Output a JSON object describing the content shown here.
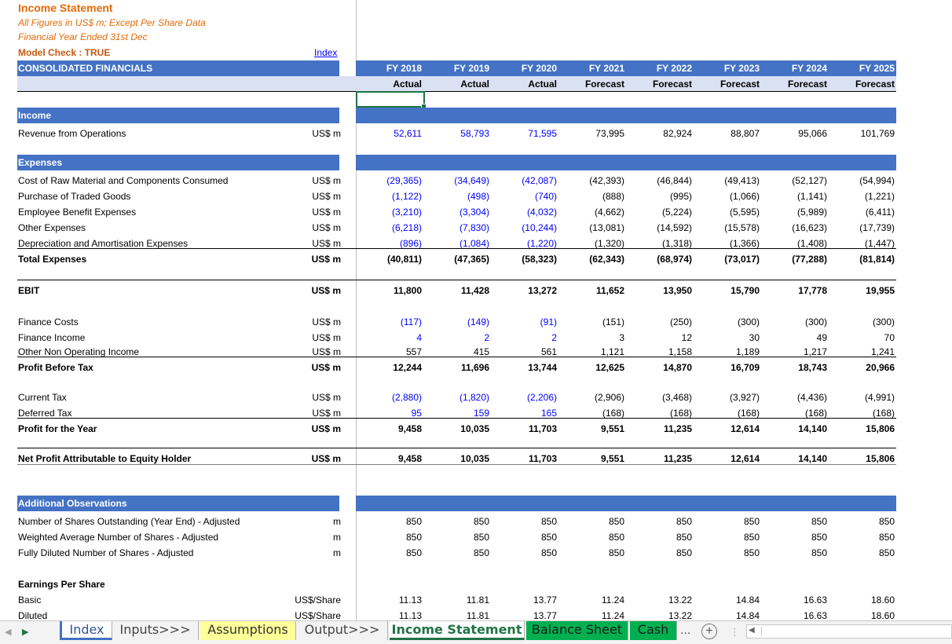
{
  "title": "Income Statement",
  "subtitle1": "All Figures in US$ m; Except Per Share Data",
  "subtitle2": "Financial Year Ended 31st Dec",
  "model_check": "Model Check : TRUE",
  "index_link": "Index",
  "header_band": "CONSOLIDATED FINANCIALS",
  "years": [
    "FY 2018",
    "FY 2019",
    "FY 2020",
    "FY 2021",
    "FY 2022",
    "FY 2023",
    "FY 2024",
    "FY 2025"
  ],
  "year_types": [
    "Actual",
    "Actual",
    "Actual",
    "Forecast",
    "Forecast",
    "Forecast",
    "Forecast",
    "Forecast"
  ],
  "sections": {
    "income": "Income",
    "expenses": "Expenses",
    "additional": "Additional Observations"
  },
  "rows": {
    "revenue": {
      "label": "Revenue from Operations",
      "unit": "US$ m",
      "values": [
        "52,611",
        "58,793",
        "71,595",
        "73,995",
        "82,924",
        "88,807",
        "95,066",
        "101,769"
      ]
    },
    "raw_material": {
      "label": "Cost of Raw Material and Components Consumed",
      "unit": "US$ m",
      "values": [
        "(29,365)",
        "(34,649)",
        "(42,087)",
        "(42,393)",
        "(46,844)",
        "(49,413)",
        "(52,127)",
        "(54,994)"
      ]
    },
    "traded_goods": {
      "label": "Purchase of Traded Goods",
      "unit": "US$ m",
      "values": [
        "(1,122)",
        "(498)",
        "(740)",
        "(888)",
        "(995)",
        "(1,066)",
        "(1,141)",
        "(1,221)"
      ]
    },
    "employee": {
      "label": "Employee Benefit Expenses",
      "unit": "US$ m",
      "values": [
        "(3,210)",
        "(3,304)",
        "(4,032)",
        "(4,662)",
        "(5,224)",
        "(5,595)",
        "(5,989)",
        "(6,411)"
      ]
    },
    "other_exp": {
      "label": "Other Expenses",
      "unit": "US$ m",
      "values": [
        "(6,218)",
        "(7,830)",
        "(10,244)",
        "(13,081)",
        "(14,592)",
        "(15,578)",
        "(16,623)",
        "(17,739)"
      ]
    },
    "depreciation": {
      "label": "Depreciation and Amortisation Expenses",
      "unit": "US$ m",
      "values": [
        "(896)",
        "(1,084)",
        "(1,220)",
        "(1,320)",
        "(1,318)",
        "(1,366)",
        "(1,408)",
        "(1,447)"
      ]
    },
    "total_exp": {
      "label": "Total Expenses",
      "unit": "US$ m",
      "values": [
        "(40,811)",
        "(47,365)",
        "(58,323)",
        "(62,343)",
        "(68,974)",
        "(73,017)",
        "(77,288)",
        "(81,814)"
      ]
    },
    "ebit": {
      "label": "EBIT",
      "unit": "US$ m",
      "values": [
        "11,800",
        "11,428",
        "13,272",
        "11,652",
        "13,950",
        "15,790",
        "17,778",
        "19,955"
      ]
    },
    "finance_costs": {
      "label": "Finance Costs",
      "unit": "US$ m",
      "values": [
        "(117)",
        "(149)",
        "(91)",
        "(151)",
        "(250)",
        "(300)",
        "(300)",
        "(300)"
      ]
    },
    "finance_income": {
      "label": "Finance Income",
      "unit": "US$ m",
      "values": [
        "4",
        "2",
        "2",
        "3",
        "12",
        "30",
        "49",
        "70"
      ]
    },
    "other_non_op": {
      "label": "Other Non Operating Income",
      "unit": "US$ m",
      "values": [
        "557",
        "415",
        "561",
        "1,121",
        "1,158",
        "1,189",
        "1,217",
        "1,241"
      ]
    },
    "pbt": {
      "label": "Profit Before Tax",
      "unit": "US$ m",
      "values": [
        "12,244",
        "11,696",
        "13,744",
        "12,625",
        "14,870",
        "16,709",
        "18,743",
        "20,966"
      ]
    },
    "current_tax": {
      "label": "Current Tax",
      "unit": "US$ m",
      "values": [
        "(2,880)",
        "(1,820)",
        "(2,206)",
        "(2,906)",
        "(3,468)",
        "(3,927)",
        "(4,436)",
        "(4,991)"
      ]
    },
    "deferred_tax": {
      "label": "Deferred Tax",
      "unit": "US$ m",
      "values": [
        "95",
        "159",
        "165",
        "(168)",
        "(168)",
        "(168)",
        "(168)",
        "(168)"
      ]
    },
    "profit_year": {
      "label": "Profit for the Year",
      "unit": "US$ m",
      "values": [
        "9,458",
        "10,035",
        "11,703",
        "9,551",
        "11,235",
        "12,614",
        "14,140",
        "15,806"
      ]
    },
    "net_profit": {
      "label": "Net Profit Attributable to Equity Holder",
      "unit": "US$ m",
      "values": [
        "9,458",
        "10,035",
        "11,703",
        "9,551",
        "11,235",
        "12,614",
        "14,140",
        "15,806"
      ]
    },
    "shares_out": {
      "label": "Number of Shares Outstanding (Year End) - Adjusted",
      "unit": "m",
      "values": [
        "850",
        "850",
        "850",
        "850",
        "850",
        "850",
        "850",
        "850"
      ]
    },
    "weighted": {
      "label": "Weighted Average Number of Shares - Adjusted",
      "unit": "m",
      "values": [
        "850",
        "850",
        "850",
        "850",
        "850",
        "850",
        "850",
        "850"
      ]
    },
    "diluted_shares": {
      "label": "Fully Diluted Number of Shares - Adjusted",
      "unit": "m",
      "values": [
        "850",
        "850",
        "850",
        "850",
        "850",
        "850",
        "850",
        "850"
      ]
    },
    "eps_heading": {
      "label": "Earnings Per Share",
      "unit": "",
      "values": []
    },
    "eps_basic": {
      "label": "Basic",
      "unit": "US$/Share",
      "values": [
        "11.13",
        "11.81",
        "13.77",
        "11.24",
        "13.22",
        "14.84",
        "16.63",
        "18.60"
      ]
    },
    "eps_diluted": {
      "label": "Diluted",
      "unit": "US$/Share",
      "values": [
        "11.13",
        "11.81",
        "13.77",
        "11.24",
        "13.22",
        "14.84",
        "16.63",
        "18.60"
      ]
    }
  },
  "tabs": {
    "index": "Index",
    "inputs": "Inputs>>>",
    "assumptions": "Assumptions",
    "output": "Output>>>",
    "income_statement": "Income Statement",
    "balance_sheet": "Balance Sheet",
    "cash": "Cash",
    "more": "...",
    "add": "+"
  },
  "colors": {
    "accent": "#4472c4",
    "title": "#e26b0a",
    "input": "#0000ff",
    "active_tab": "#217346",
    "green_tab": "#00b050",
    "yellow_tab": "#ffff99"
  }
}
